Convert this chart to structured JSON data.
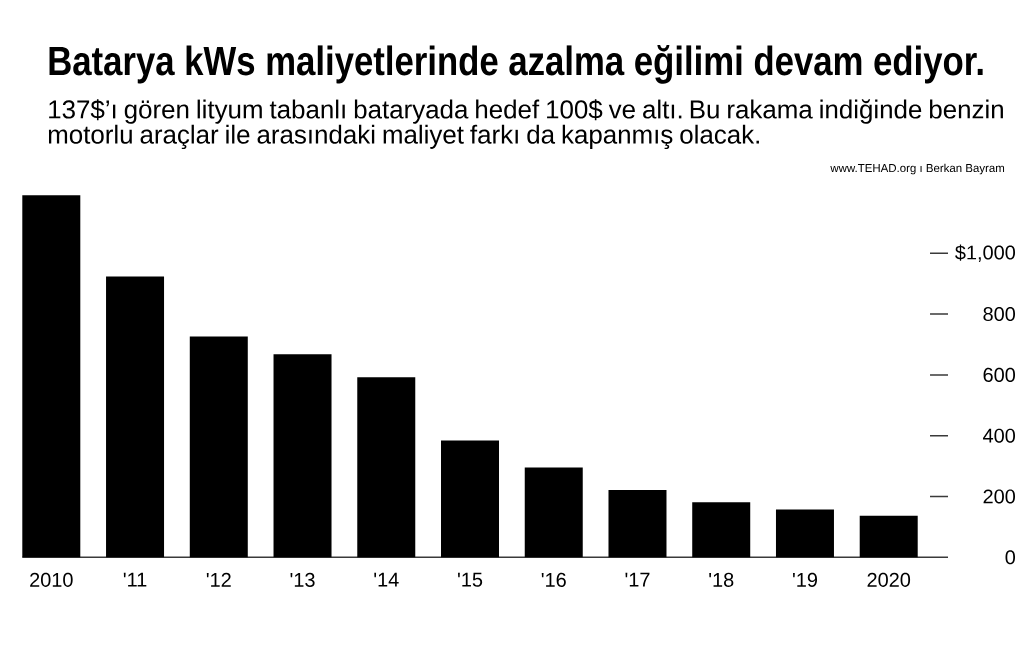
{
  "chart_data": {
    "type": "bar",
    "title": "Batarya kWs maliyetlerinde azalma eğilimi devam ediyor.",
    "subtitle": "137$’ı gören lityum tabanlı bataryada hedef 100$ ve altı. Bu rakama indiğinde benzin motorlu araçlar ile arasındaki maliyet farkı da kapanmış olacak.",
    "annotations": [
      "www.TEHAD.org ı Berkan Bayram"
    ],
    "categories": [
      "2010",
      "'11",
      "'12",
      "'13",
      "'14",
      "'15",
      "'16",
      "'17",
      "'18",
      "'19",
      "2020"
    ],
    "values": [
      1191,
      924,
      726,
      668,
      592,
      384,
      295,
      221,
      181,
      157,
      137
    ],
    "color": "#000000",
    "ylim": [
      0,
      1191
    ],
    "yticks": [
      0,
      200,
      400,
      600,
      800,
      {
        "value": 1000,
        "label": "$1,000"
      }
    ]
  }
}
